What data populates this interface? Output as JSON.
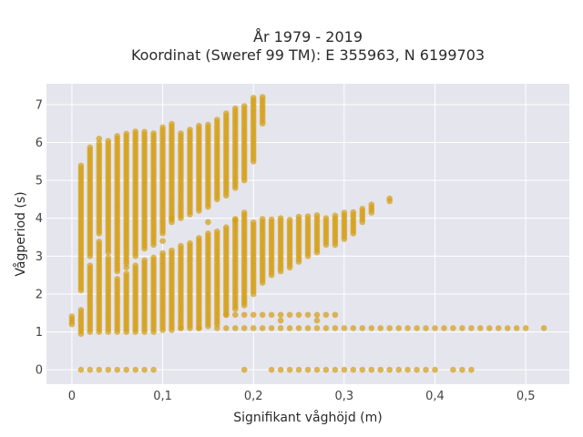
{
  "chart_data": {
    "type": "scatter",
    "title": "År 1979 - 2019",
    "subtitle": "Koordinat (Sweref 99 TM): E 355963, N 6199703",
    "xlabel": "Signifikant våghöjd (m)",
    "ylabel": "Vågperiod (s)",
    "xlim": [
      -0.028,
      0.548
    ],
    "ylim": [
      -0.38,
      7.55
    ],
    "x_ticks": [
      0,
      0.1,
      0.2,
      0.3,
      0.4,
      0.5
    ],
    "x_tick_labels": [
      "0",
      "0,1",
      "0,2",
      "0,3",
      "0,4",
      "0,5"
    ],
    "y_ticks": [
      0,
      1,
      2,
      3,
      4,
      5,
      6,
      7
    ],
    "y_tick_labels": [
      "0",
      "1",
      "2",
      "3",
      "4",
      "5",
      "6",
      "7"
    ],
    "grid": true,
    "colors": {
      "marker": "#d4a017",
      "plot_bg": "#e5e5ee",
      "grid": "#ffffff"
    },
    "columns": [
      {
        "x": 0.0,
        "y_ranges": [
          [
            1.2,
            1.45
          ]
        ]
      },
      {
        "x": 0.01,
        "y_ranges": [
          [
            0.95,
            1.6
          ],
          [
            2.1,
            5.4
          ]
        ],
        "y_points": [
          0
        ]
      },
      {
        "x": 0.02,
        "y_ranges": [
          [
            1.0,
            2.8
          ],
          [
            3.0,
            5.9
          ]
        ],
        "y_points": [
          0
        ]
      },
      {
        "x": 0.03,
        "y_ranges": [
          [
            1.0,
            3.4
          ],
          [
            3.6,
            6.0
          ]
        ],
        "y_points": [
          0,
          6.1
        ]
      },
      {
        "x": 0.04,
        "y_ranges": [
          [
            1.0,
            3.0
          ],
          [
            3.1,
            6.1
          ]
        ],
        "y_points": [
          0
        ]
      },
      {
        "x": 0.05,
        "y_ranges": [
          [
            1.0,
            2.4
          ],
          [
            2.6,
            6.2
          ]
        ],
        "y_points": [
          0
        ]
      },
      {
        "x": 0.06,
        "y_ranges": [
          [
            1.0,
            2.6
          ],
          [
            2.8,
            6.25
          ]
        ],
        "y_points": [
          0
        ]
      },
      {
        "x": 0.07,
        "y_ranges": [
          [
            1.0,
            2.8
          ],
          [
            3.0,
            6.3
          ]
        ],
        "y_points": [
          0
        ]
      },
      {
        "x": 0.08,
        "y_ranges": [
          [
            1.0,
            2.9
          ],
          [
            3.2,
            6.3
          ]
        ],
        "y_points": [
          0
        ]
      },
      {
        "x": 0.09,
        "y_ranges": [
          [
            1.0,
            3.0
          ],
          [
            3.3,
            6.3
          ]
        ],
        "y_points": [
          0
        ]
      },
      {
        "x": 0.1,
        "y_ranges": [
          [
            1.05,
            3.1
          ],
          [
            3.6,
            6.4
          ]
        ]
      },
      {
        "x": 0.11,
        "y_ranges": [
          [
            1.05,
            3.2
          ],
          [
            3.9,
            6.5
          ]
        ]
      },
      {
        "x": 0.12,
        "y_ranges": [
          [
            1.1,
            3.3
          ],
          [
            4.0,
            6.3
          ]
        ]
      },
      {
        "x": 0.13,
        "y_ranges": [
          [
            1.1,
            3.4
          ],
          [
            4.1,
            6.4
          ]
        ]
      },
      {
        "x": 0.14,
        "y_ranges": [
          [
            1.1,
            3.5
          ],
          [
            4.2,
            6.5
          ]
        ]
      },
      {
        "x": 0.15,
        "y_ranges": [
          [
            1.15,
            3.6
          ],
          [
            4.3,
            6.5
          ]
        ]
      },
      {
        "x": 0.16,
        "y_ranges": [
          [
            1.2,
            3.7
          ],
          [
            4.5,
            6.6
          ]
        ]
      },
      {
        "x": 0.17,
        "y_ranges": [
          [
            1.45,
            3.8
          ],
          [
            4.6,
            6.8
          ]
        ]
      },
      {
        "x": 0.18,
        "y_ranges": [
          [
            1.6,
            4.0
          ],
          [
            4.8,
            6.9
          ]
        ]
      },
      {
        "x": 0.19,
        "y_ranges": [
          [
            1.7,
            4.2
          ],
          [
            5.0,
            7.0
          ]
        ]
      },
      {
        "x": 0.2,
        "y_ranges": [
          [
            2.0,
            3.9
          ],
          [
            5.5,
            7.2
          ]
        ]
      },
      {
        "x": 0.21,
        "y_ranges": [
          [
            2.3,
            4.0
          ],
          [
            6.5,
            7.2
          ]
        ]
      },
      {
        "x": 0.22,
        "y_ranges": [
          [
            2.5,
            4.0
          ]
        ]
      },
      {
        "x": 0.23,
        "y_ranges": [
          [
            2.6,
            4.0
          ]
        ]
      },
      {
        "x": 0.24,
        "y_ranges": [
          [
            2.7,
            4.0
          ]
        ]
      },
      {
        "x": 0.25,
        "y_ranges": [
          [
            2.85,
            4.1
          ]
        ]
      },
      {
        "x": 0.26,
        "y_ranges": [
          [
            3.0,
            4.1
          ]
        ]
      },
      {
        "x": 0.27,
        "y_ranges": [
          [
            3.1,
            4.1
          ]
        ]
      },
      {
        "x": 0.28,
        "y_ranges": [
          [
            3.3,
            4.0
          ]
        ]
      },
      {
        "x": 0.29,
        "y_ranges": [
          [
            3.3,
            4.1
          ]
        ]
      },
      {
        "x": 0.3,
        "y_ranges": [
          [
            3.45,
            4.2
          ]
        ]
      },
      {
        "x": 0.31,
        "y_ranges": [
          [
            3.6,
            4.2
          ]
        ]
      },
      {
        "x": 0.32,
        "y_ranges": [
          [
            3.9,
            4.3
          ]
        ]
      },
      {
        "x": 0.33,
        "y_ranges": [
          [
            4.15,
            4.4
          ]
        ]
      },
      {
        "x": 0.35,
        "y_ranges": [
          [
            4.45,
            4.55
          ]
        ]
      }
    ],
    "band_1_1": {
      "x_from": 0.17,
      "x_to": 0.5,
      "step": 0.01,
      "y": 1.1,
      "extra": [
        0.52
      ]
    },
    "band_1_45": {
      "x_from": 0.17,
      "x_to": 0.29,
      "step": 0.01,
      "y": 1.45
    },
    "scattered": [
      [
        0.12,
        1.1
      ],
      [
        0.14,
        1.1
      ],
      [
        0.16,
        1.1
      ],
      [
        0.19,
        0
      ],
      [
        0.11,
        4.0
      ],
      [
        0.1,
        3.4
      ],
      [
        0.27,
        1.3
      ],
      [
        0.23,
        1.3
      ],
      [
        0.15,
        3.9
      ],
      [
        0.18,
        3.95
      ],
      [
        0.06,
        2.7
      ]
    ]
  }
}
